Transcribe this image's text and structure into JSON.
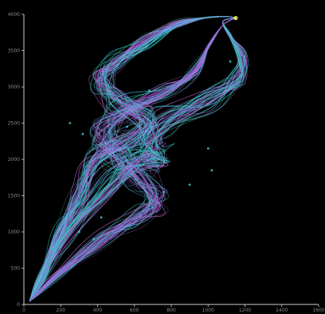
{
  "colors": {
    "background": "#000000",
    "axis": "#cfcfcf",
    "tick_label": "#8a8a8a",
    "violet": "#a45ad8",
    "magenta": "#d070e0",
    "cyan": "#46d6ea",
    "teal": "#2fb8a6",
    "marker": "#e8e060"
  },
  "chart_data": {
    "type": "line",
    "title": "",
    "xlabel": "",
    "ylabel": "",
    "xlim": [
      0,
      1600
    ],
    "ylim": [
      0,
      4000
    ],
    "grid": false,
    "x_ticks": [
      0,
      200,
      400,
      600,
      800,
      1000,
      1200,
      1400,
      1600
    ],
    "y_ticks": [
      0,
      500,
      1000,
      1500,
      2000,
      2500,
      3000,
      3500,
      4000
    ],
    "x_tick_labels": [
      "0",
      "200",
      "400",
      "600",
      "800",
      "1000",
      "1200",
      "1400",
      "1600"
    ],
    "y_tick_labels": [
      "0",
      "500",
      "1000",
      "1500",
      "2000",
      "2500",
      "3000",
      "3500",
      "4000"
    ],
    "trajectory_count": 140,
    "trajectory_paths": {
      "right_loop": {
        "x": [
          30,
          100,
          230,
          480,
          640,
          740,
          680,
          760,
          1000,
          1160,
          1180,
          1120,
          1080,
          1150
        ],
        "y": [
          40,
          400,
          1000,
          1700,
          2000,
          2000,
          2200,
          2500,
          2800,
          3100,
          3400,
          3700,
          3900,
          3950
        ]
      },
      "left_loop": {
        "x": [
          30,
          100,
          200,
          300,
          380,
          560,
          680,
          520,
          420,
          480,
          650,
          820,
          980,
          1100,
          1150
        ],
        "y": [
          40,
          400,
          1000,
          1500,
          2000,
          2250,
          2500,
          2800,
          3050,
          3300,
          3600,
          3850,
          3950,
          3970,
          3950
        ]
      },
      "lower_crossing": {
        "x": [
          30,
          180,
          420,
          640,
          720,
          620,
          500,
          420,
          520,
          760,
          920,
          1000,
          1080,
          1150
        ],
        "y": [
          40,
          400,
          900,
          1250,
          1450,
          1750,
          2050,
          2350,
          2650,
          2900,
          3200,
          3550,
          3850,
          3950
        ]
      }
    },
    "markers": [
      {
        "x": 1150,
        "y": 3950
      },
      {
        "x": 560,
        "y": 2450
      },
      {
        "x": 320,
        "y": 2350
      },
      {
        "x": 1000,
        "y": 2150
      },
      {
        "x": 900,
        "y": 1650
      },
      {
        "x": 760,
        "y": 1550
      },
      {
        "x": 420,
        "y": 1200
      },
      {
        "x": 380,
        "y": 900
      },
      {
        "x": 300,
        "y": 1000
      },
      {
        "x": 1020,
        "y": 1850
      },
      {
        "x": 250,
        "y": 2500
      },
      {
        "x": 680,
        "y": 2950
      },
      {
        "x": 1120,
        "y": 3350
      }
    ]
  }
}
